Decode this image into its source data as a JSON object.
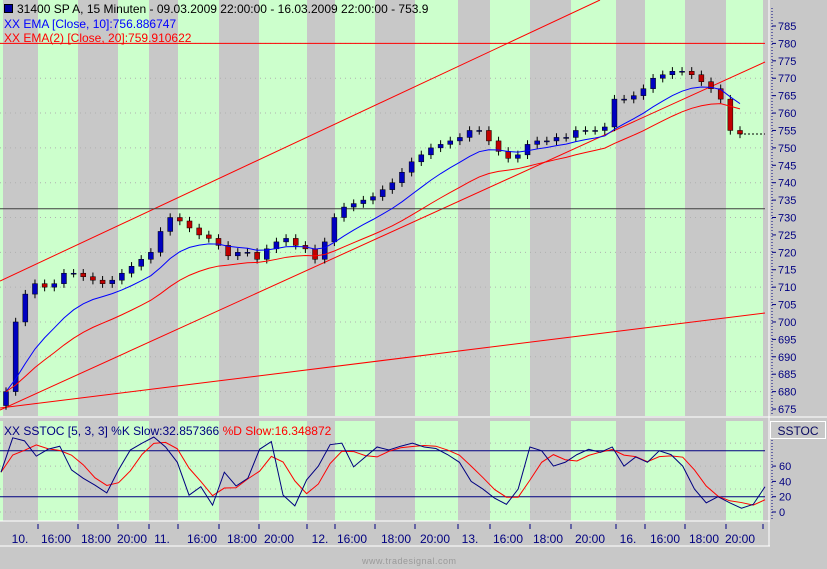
{
  "header": {
    "title": "31400  SP A, 15 Minuten - 09.03.2009 22:00:00 - 16.03.2009 22:00:00 - 753.9",
    "title_icon": "square-marker-icon"
  },
  "legend": {
    "ema10": "XX EMA [Close, 10]:756.886747",
    "ema20": "XX EMA(2) [Close, 20]:759.910622"
  },
  "stoch_legend": {
    "k": "XX SSTOC [5, 3, 3] %K Slow:32.857366",
    "d": "%D Slow:16.348872"
  },
  "stoch_button": "SSTOC",
  "watermark": "www.tradesignal.com",
  "colors": {
    "up_session": "#ccffcc",
    "off_session": "#c8c8c8",
    "ema10": "#0000ff",
    "ema20": "#ff0000",
    "k": "#000080",
    "d": "#ff0000",
    "trendline": "#ff0000"
  },
  "price_axis": [
    "785",
    "780",
    "775",
    "770",
    "765",
    "760",
    "755",
    "750",
    "745",
    "740",
    "735",
    "730",
    "725",
    "720",
    "715",
    "710",
    "705",
    "700",
    "695",
    "690",
    "685",
    "680",
    "675"
  ],
  "stoch_axis": [
    "60",
    "40",
    "20",
    "0"
  ],
  "time_axis": [
    "10.",
    "16:00",
    "18:00",
    "20:00",
    "11.",
    "16:00",
    "18:00",
    "20:00",
    "12.",
    "16:00",
    "18:00",
    "20:00",
    "13.",
    "16:00",
    "18:00",
    "20:00",
    "16.",
    "16:00",
    "18:00",
    "20:00"
  ],
  "chart_data": {
    "type": "candlestick",
    "price_range": [
      673,
      789
    ],
    "horizontal_lines": [
      780,
      732.5
    ],
    "closes": [
      680,
      700,
      708,
      711,
      710,
      711,
      714,
      714,
      713,
      712,
      711,
      712,
      714,
      716,
      718,
      720,
      726,
      730,
      729,
      727,
      725,
      724,
      722,
      719,
      720,
      720,
      718,
      721,
      723,
      724,
      722,
      721,
      718,
      723,
      730,
      733,
      734,
      735,
      736,
      738,
      740,
      743,
      746,
      748,
      750,
      751,
      752,
      753,
      755,
      755,
      752,
      749,
      747,
      748,
      751,
      752,
      752,
      753,
      753,
      755,
      755,
      755,
      756,
      764,
      764,
      765,
      767,
      770,
      771,
      772,
      772,
      771,
      769,
      767,
      764,
      755,
      754
    ],
    "stoch_k": [
      52,
      97,
      93,
      73,
      82,
      86,
      55,
      44,
      35,
      25,
      55,
      81,
      90,
      98,
      85,
      65,
      22,
      33,
      9,
      52,
      34,
      44,
      82,
      92,
      22,
      8,
      42,
      60,
      88,
      90,
      59,
      72,
      85,
      81,
      86,
      90,
      85,
      83,
      75,
      65,
      40,
      30,
      18,
      10,
      30,
      85,
      80,
      60,
      65,
      75,
      82,
      78,
      85,
      60,
      72,
      65,
      80,
      75,
      60,
      30,
      12,
      20,
      12,
      5,
      10,
      33
    ],
    "stoch_levels": [
      80,
      20
    ],
    "stoch_range": [
      -5,
      100
    ]
  }
}
